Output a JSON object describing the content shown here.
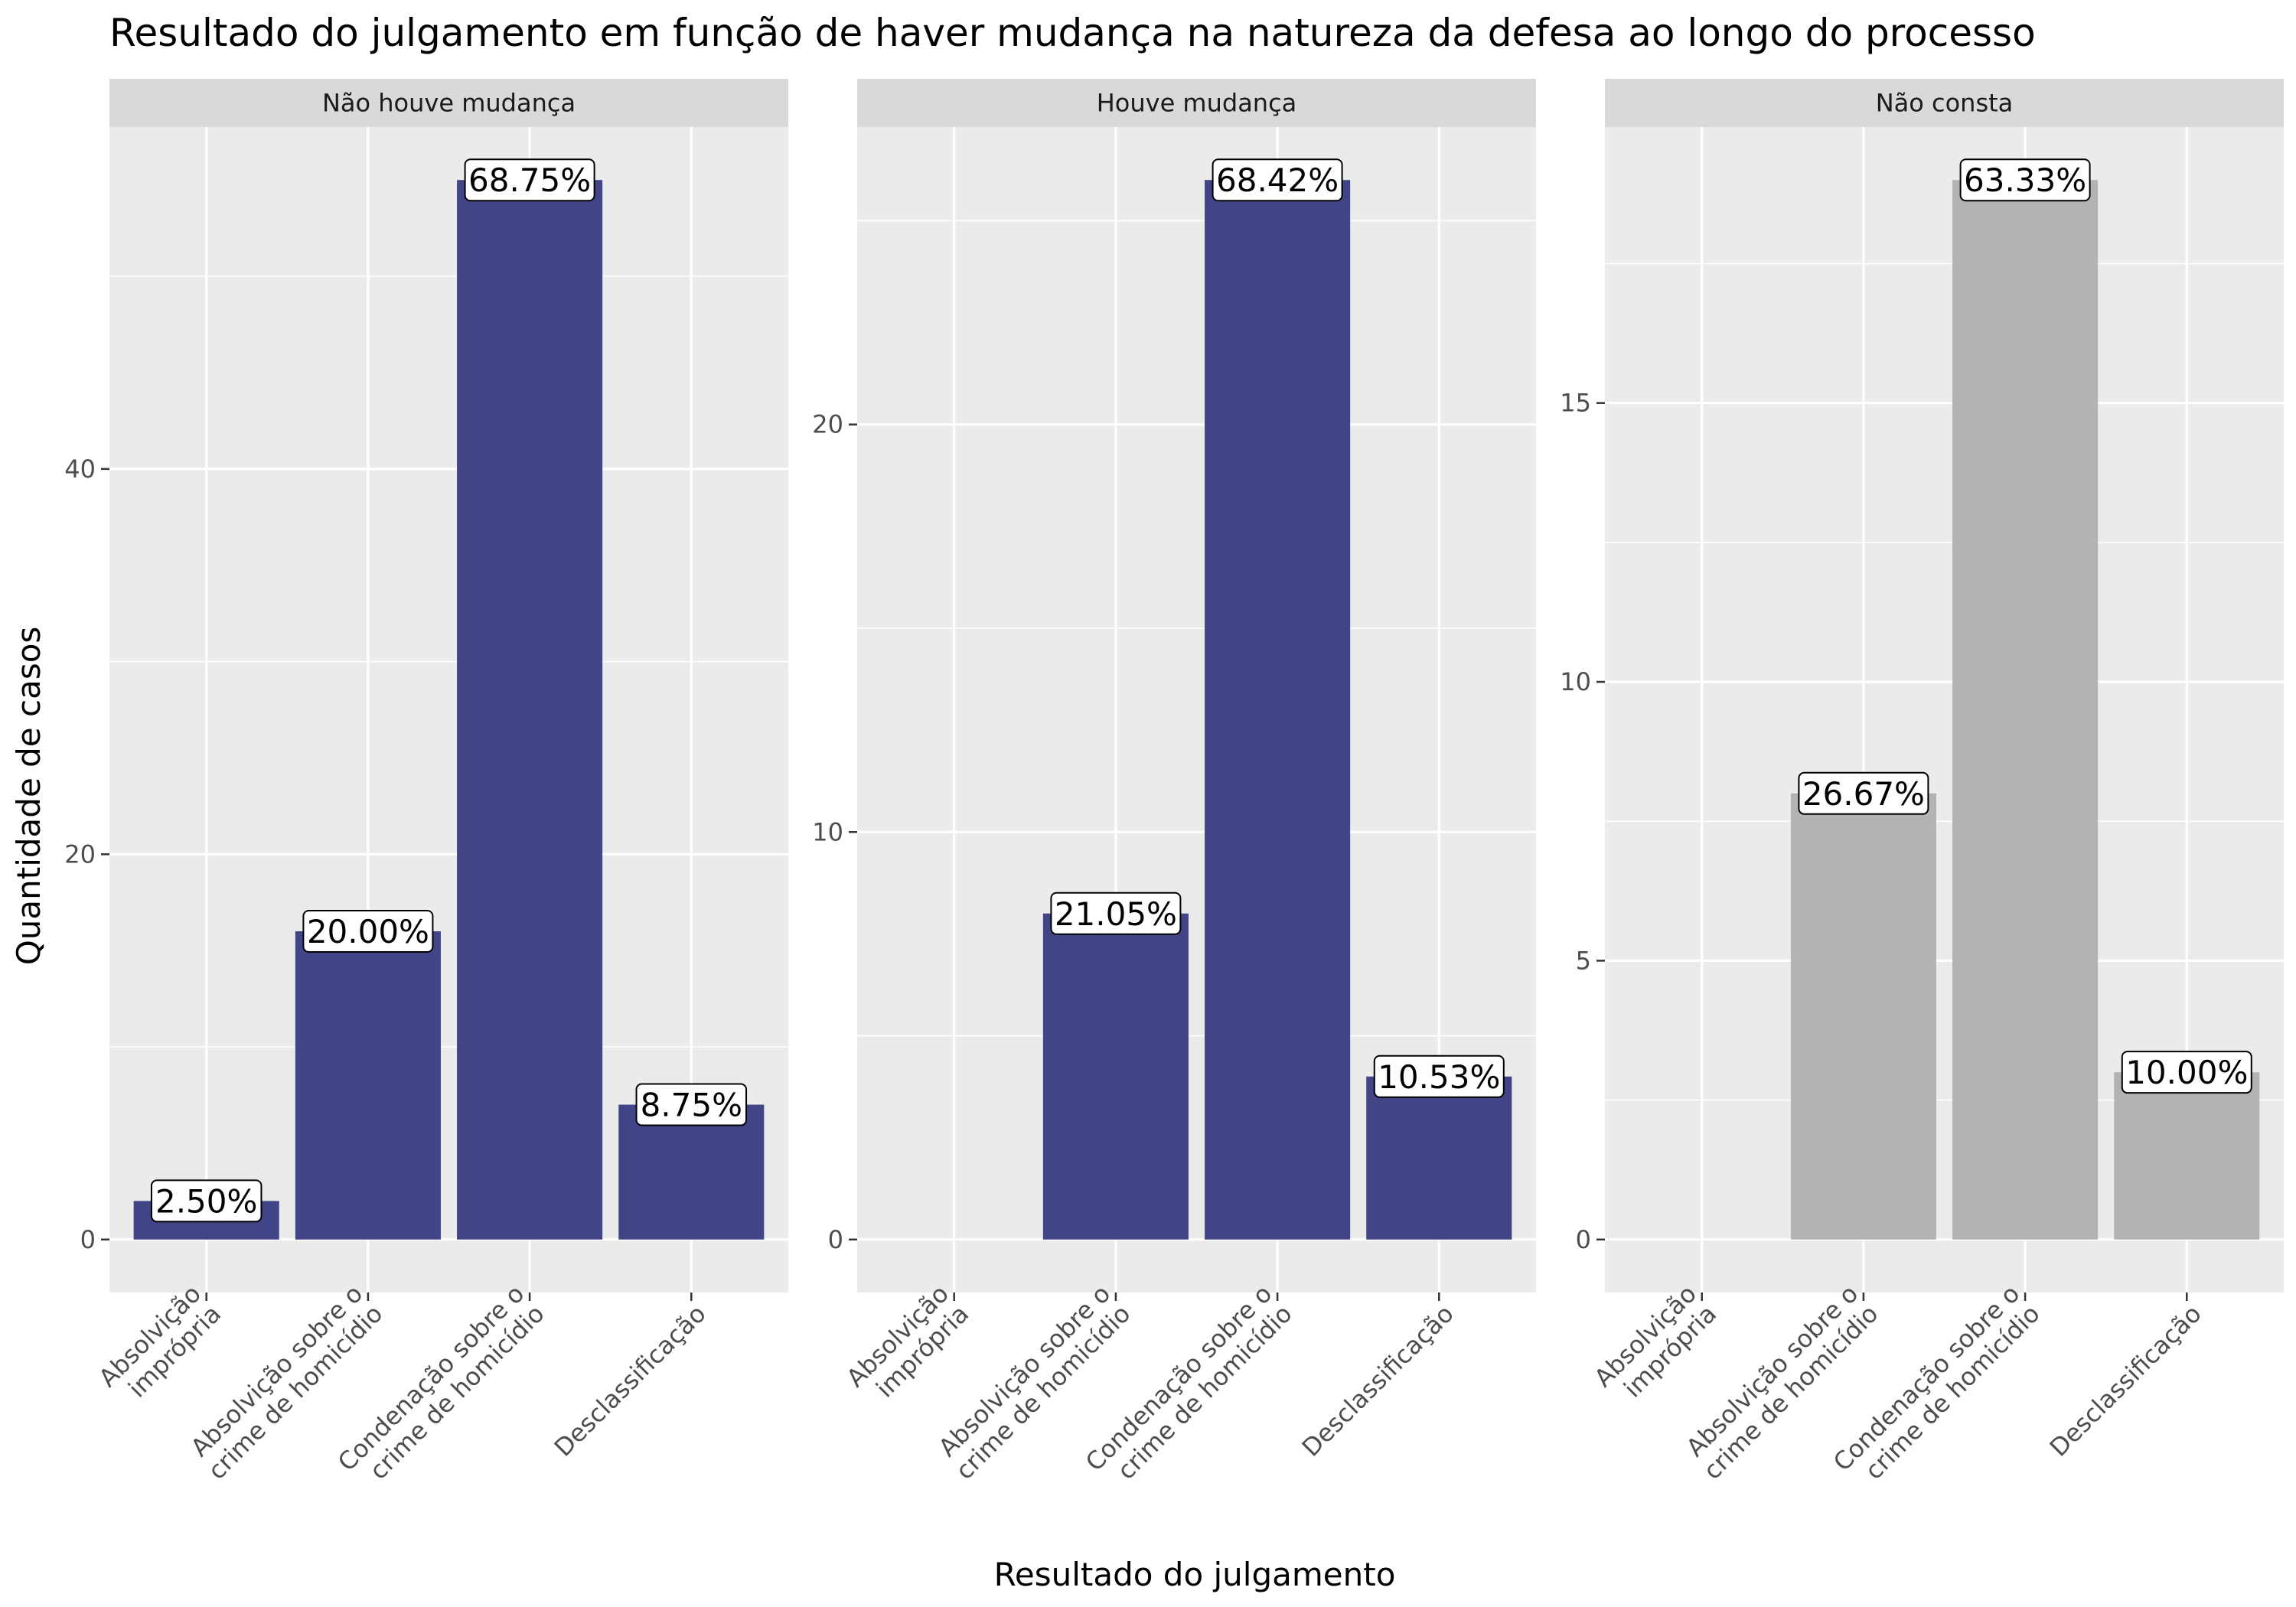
{
  "chart_data": {
    "type": "bar",
    "title": "Resultado do julgamento em função de haver mudança na natureza da defesa ao longo do processo",
    "xlabel": "Resultado do julgamento",
    "ylabel": "Quantidade de casos",
    "categories": [
      "Absolvição imprópria",
      "Absolvição sobre o crime de homicídio",
      "Condenação sobre o crime de homicídio",
      "Desclassificação"
    ],
    "category_lines": [
      [
        "Absolvição",
        "imprópria"
      ],
      [
        "Absolvição sobre o",
        "crime de homicídio"
      ],
      [
        "Condenação sobre o",
        "crime de homicídio"
      ],
      [
        "Desclassificação"
      ]
    ],
    "grid": true,
    "facets": [
      {
        "name": "Não houve mudança",
        "values": [
          2,
          16,
          55,
          7
        ],
        "labels": [
          "2.50%",
          "20.00%",
          "68.75%",
          "8.75%"
        ],
        "ylim": [
          -2.75,
          57.75
        ],
        "yticks": [
          0,
          20,
          40
        ],
        "color": "#414487"
      },
      {
        "name": "Houve mudança",
        "values": [
          0,
          8,
          26,
          4
        ],
        "labels": [
          "",
          "21.05%",
          "68.42%",
          "10.53%"
        ],
        "ylim": [
          -1.3,
          27.3
        ],
        "yticks": [
          0,
          10,
          20
        ],
        "color": "#414487"
      },
      {
        "name": "Não consta",
        "values": [
          0,
          8,
          19,
          3
        ],
        "labels": [
          "",
          "26.67%",
          "63.33%",
          "10.00%"
        ],
        "ylim": [
          -0.95,
          19.95
        ],
        "yticks": [
          0,
          5,
          10,
          15
        ],
        "color": "#b3b3b3"
      }
    ]
  }
}
